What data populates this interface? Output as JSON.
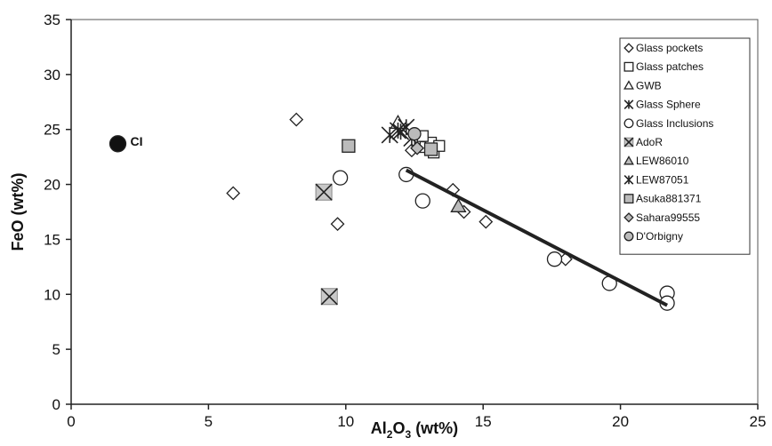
{
  "chart_data": {
    "type": "scatter",
    "title": "",
    "xlabel": {
      "main": "Al",
      "sub1": "2",
      "mid": "O",
      "sub2": "3",
      "unit": " (wt%)"
    },
    "ylabel": "FeO (wt%)",
    "xlim": [
      0,
      25
    ],
    "ylim": [
      0,
      35
    ],
    "x_ticks": [
      0,
      5,
      10,
      15,
      20,
      25
    ],
    "y_ticks": [
      0,
      5,
      10,
      15,
      20,
      25,
      30,
      35
    ],
    "grid": false,
    "legend_position": "top-right",
    "annotations": [
      {
        "text": "CI",
        "x": 1.7,
        "y": 23.7
      }
    ],
    "series": [
      {
        "name": "Glass pockets",
        "marker": "diamond",
        "fill": "#ffffff",
        "size": 7,
        "points": [
          [
            5.9,
            19.2
          ],
          [
            8.2,
            25.9
          ],
          [
            9.7,
            16.4
          ],
          [
            12.4,
            23.1
          ],
          [
            13.9,
            19.5
          ],
          [
            14.3,
            17.5
          ],
          [
            15.1,
            16.6
          ],
          [
            18.0,
            13.2
          ]
        ]
      },
      {
        "name": "Glass patches",
        "marker": "square",
        "fill": "#ffffff",
        "size": 6,
        "points": [
          [
            12.7,
            24.0
          ],
          [
            12.9,
            23.4
          ],
          [
            13.1,
            23.8
          ],
          [
            13.2,
            22.9
          ],
          [
            13.4,
            23.5
          ],
          [
            12.8,
            24.4
          ]
        ]
      },
      {
        "name": "GWB",
        "marker": "triangle",
        "fill": "#ffffff",
        "size": 8,
        "points": [
          [
            11.9,
            25.6
          ]
        ]
      },
      {
        "name": "Glass Sphere",
        "marker": "asterisk",
        "fill": "none",
        "size": 9,
        "points": [
          [
            11.6,
            24.5
          ],
          [
            11.9,
            24.9
          ],
          [
            12.2,
            25.2
          ],
          [
            12.4,
            24.2
          ]
        ]
      },
      {
        "name": "Glass Inclusions",
        "marker": "circle",
        "fill": "#ffffff",
        "size": 8,
        "points": [
          [
            9.8,
            20.6
          ],
          [
            12.2,
            20.9
          ],
          [
            12.8,
            18.5
          ],
          [
            17.6,
            13.2
          ],
          [
            19.6,
            11.0
          ],
          [
            21.7,
            10.1
          ],
          [
            21.7,
            9.2
          ]
        ]
      },
      {
        "name": "AdoR",
        "marker": "xsquare",
        "fill": "#c8c8c8",
        "size": 9,
        "points": [
          [
            9.2,
            19.3
          ],
          [
            9.4,
            9.8
          ]
        ]
      },
      {
        "name": "LEW86010",
        "marker": "triangle",
        "fill": "#bbbbbb",
        "size": 8,
        "points": [
          [
            14.1,
            18.0
          ]
        ]
      },
      {
        "name": "LEW87051",
        "marker": "asterisk",
        "fill": "none",
        "size": 9,
        "points": [
          [
            12.0,
            24.8
          ]
        ]
      },
      {
        "name": "Asuka881371",
        "marker": "square",
        "fill": "#bbbbbb",
        "size": 7,
        "points": [
          [
            10.1,
            23.5
          ],
          [
            13.1,
            23.2
          ]
        ]
      },
      {
        "name": "Sahara99555",
        "marker": "diamond",
        "fill": "#bbbbbb",
        "size": 7,
        "points": [
          [
            12.6,
            23.3
          ]
        ]
      },
      {
        "name": "D'Orbigny",
        "marker": "circle",
        "fill": "#bbbbbb",
        "size": 7,
        "points": [
          [
            12.5,
            24.6
          ]
        ]
      },
      {
        "name": "",
        "marker": "circle",
        "fill": "#111111",
        "size": 9,
        "points": [
          [
            1.7,
            23.7
          ]
        ]
      }
    ],
    "trendline": {
      "points": [
        [
          12.2,
          21.3
        ],
        [
          21.7,
          9.0
        ]
      ],
      "color": "#222222"
    },
    "colors": {
      "axis": "#222222",
      "background": "#ffffff",
      "frame": "#555555"
    }
  }
}
